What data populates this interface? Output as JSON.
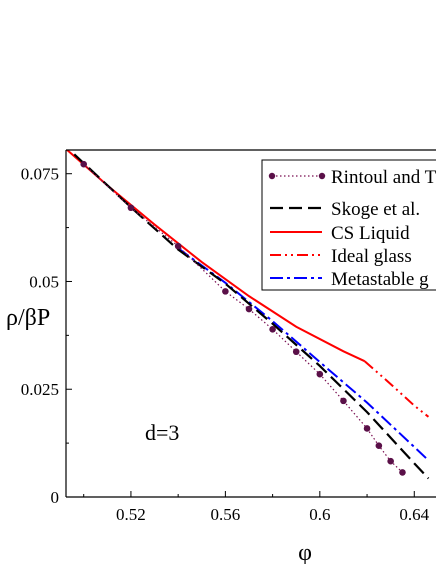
{
  "chart_data": {
    "type": "line",
    "xlabel": "φ",
    "ylabel": "ρ/βP",
    "annotation": "d=3",
    "xlim": [
      0.493,
      0.646
    ],
    "ylim": [
      0,
      0.0805
    ],
    "x_ticks": [
      0.52,
      0.56,
      0.6,
      0.64
    ],
    "x_tick_labels": [
      "0.52",
      "0.56",
      "0.6",
      "0.64"
    ],
    "y_ticks": [
      0,
      0.025,
      0.05,
      0.075
    ],
    "y_tick_labels": [
      "0",
      "0.025",
      "0.05",
      "0.075"
    ],
    "grid": false,
    "legend_position": "top-right",
    "series": [
      {
        "name": "Rintoul and T",
        "style": "dotted-markers",
        "color": "#7a0f52",
        "x": [
          0.5,
          0.52,
          0.54,
          0.56,
          0.57,
          0.58,
          0.59,
          0.6,
          0.61,
          0.62,
          0.625,
          0.63,
          0.635
        ],
        "y": [
          0.0772,
          0.0671,
          0.0582,
          0.0477,
          0.0436,
          0.0389,
          0.0337,
          0.0285,
          0.0223,
          0.0159,
          0.0119,
          0.0083,
          0.0057
        ]
      },
      {
        "name": "Skoge et al.",
        "style": "long-dash",
        "color": "#000000",
        "x": [
          0.496,
          0.52,
          0.54,
          0.56,
          0.58,
          0.6,
          0.62,
          0.64,
          0.646
        ],
        "y": [
          0.0795,
          0.0672,
          0.0574,
          0.0495,
          0.0402,
          0.0304,
          0.0197,
          0.0078,
          0.0043
        ]
      },
      {
        "name": "CS Liquid",
        "style": "solid",
        "color": "#ff0000",
        "x": [
          0.493,
          0.51,
          0.53,
          0.55,
          0.57,
          0.59,
          0.61,
          0.619
        ],
        "y": [
          0.0805,
          0.0723,
          0.0632,
          0.0545,
          0.0466,
          0.0395,
          0.0338,
          0.0315
        ]
      },
      {
        "name": "Ideal glass",
        "style": "dash-dot-dot",
        "color": "#ff0000",
        "x": [
          0.619,
          0.63,
          0.64,
          0.646
        ],
        "y": [
          0.0315,
          0.0262,
          0.0212,
          0.0186
        ]
      },
      {
        "name": "Metastable g",
        "style": "dash-dot",
        "color": "#0000ff",
        "x": [
          0.54,
          0.56,
          0.58,
          0.6,
          0.62,
          0.64,
          0.646
        ],
        "y": [
          0.0577,
          0.0497,
          0.0408,
          0.0313,
          0.0219,
          0.0116,
          0.0085
        ]
      }
    ]
  },
  "colors": {
    "axis": "#000000",
    "legend_box": "#000000",
    "background": "#ffffff"
  }
}
